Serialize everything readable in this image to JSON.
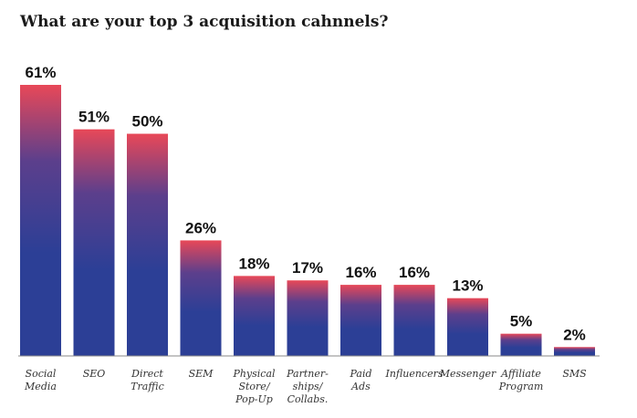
{
  "title": "What are your top 3 acquisition cahnnels?",
  "colors": {
    "bar_top": "#e84858",
    "bar_bottom": "#2c3f96",
    "baseline": "#8a8a8a"
  },
  "chart_data": {
    "type": "bar",
    "title": "What are your top 3 acquisition cahnnels?",
    "categories": [
      [
        "Social",
        "Media"
      ],
      [
        "SEO"
      ],
      [
        "Direct",
        "Traffic"
      ],
      [
        "SEM"
      ],
      [
        "Physical",
        "Store/",
        "Pop-Up"
      ],
      [
        "Partner-",
        "ships/",
        "Collabs."
      ],
      [
        "Paid",
        "Ads"
      ],
      [
        "Influencers"
      ],
      [
        "Messenger"
      ],
      [
        "Affiliate",
        "Program"
      ],
      [
        "SMS"
      ]
    ],
    "values": [
      61,
      51,
      50,
      26,
      18,
      17,
      16,
      16,
      13,
      5,
      2
    ],
    "value_labels": [
      "61%",
      "51%",
      "50%",
      "26%",
      "18%",
      "17%",
      "16%",
      "16%",
      "13%",
      "5%",
      "2%"
    ],
    "ylim": [
      0,
      61
    ],
    "grid": false,
    "legend": "none"
  }
}
